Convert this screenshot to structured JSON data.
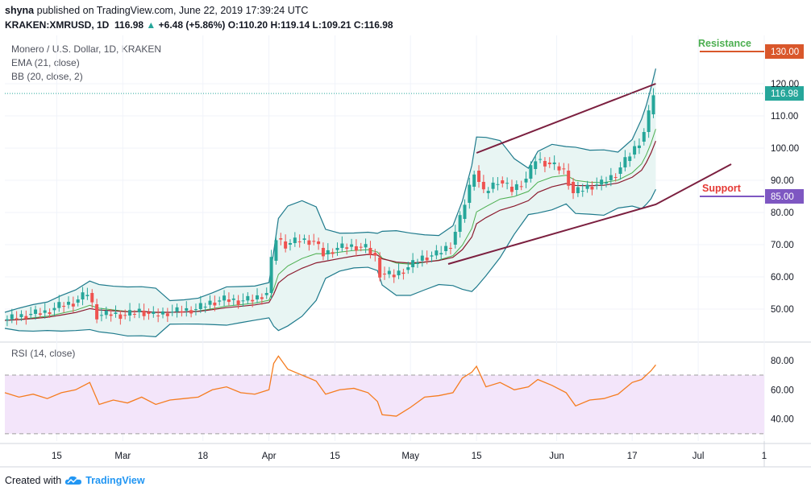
{
  "header": {
    "author": "shyna",
    "published_text": "published on TradingView.com, June 22, 2019 17:39:24 UTC",
    "symbol": "KRAKEN:XMRUSD, 1D",
    "last": "116.98",
    "change_arrow": "▲",
    "change": "+6.48 (+5.86%)",
    "o_label": "O:",
    "o_value": "110.20",
    "h_label": "H:",
    "h_value": "119.14",
    "l_label": "L:",
    "l_value": "109.21",
    "c_label": "C:",
    "c_value": "116.98"
  },
  "legends": {
    "instrument": "Monero / U.S. Dollar, 1D, KRAKEN",
    "ema": "EMA (21, close)",
    "bb": "BB (20, close, 2)",
    "rsi": "RSI (14, close)"
  },
  "footer": {
    "created_with": "Created with",
    "brand": "TradingView",
    "logo_icon": "tradingview-cloud-icon"
  },
  "colors": {
    "up": "#26a69a",
    "down": "#ef5350",
    "bb": "#1e7a8c",
    "bb_fill": "#e8f5f3",
    "ema": "#8b1a2e",
    "ema_mid": "#4caf50",
    "channel": "#7b1f3f",
    "resistance": "#d9572b",
    "support": "#7e57c2",
    "rsi": "#f57c1f",
    "rsi_band": "#f3e5fa"
  },
  "chart_data": [
    {
      "type": "candlestick",
      "title": "Monero / U.S. Dollar, 1D, KRAKEN",
      "ylim": [
        40,
        135
      ],
      "yticks": [
        50,
        60,
        70,
        80,
        90,
        100,
        110,
        120
      ],
      "ytick_labels": [
        "50.00",
        "60.00",
        "70.00",
        "80.00",
        "90.00",
        "100.00",
        "110.00",
        "120.00"
      ],
      "xtick_labels": [
        "15",
        "Mar",
        "18",
        "Apr",
        "15",
        "May",
        "15",
        "Jun",
        "17",
        "Jul",
        "1"
      ],
      "xtick_dates": [
        "2019-02-15",
        "2019-03-01",
        "2019-03-18",
        "2019-04-01",
        "2019-04-15",
        "2019-05-01",
        "2019-05-15",
        "2019-06-01",
        "2019-06-17",
        "2019-07-01",
        "2019-07-15"
      ],
      "xlim": [
        "2019-02-04",
        "2019-07-15"
      ],
      "last_price_label": "116.98",
      "levels": [
        {
          "label": "Resistance",
          "value": 130,
          "value_label": "130.00",
          "color": "#d9572b",
          "label_color": "#4caf50"
        },
        {
          "label": "Support",
          "value": 85,
          "value_label": "85.00",
          "color": "#7e57c2",
          "label_color": "#e53935"
        }
      ],
      "channel_lines": [
        {
          "points": [
            [
              "2019-05-15",
              98.5
            ],
            [
              "2019-06-22",
              120
            ]
          ]
        },
        {
          "points": [
            [
              "2019-05-09",
              64
            ],
            [
              "2019-06-22",
              82.5
            ],
            [
              "2019-07-08",
              95
            ]
          ]
        }
      ],
      "close_series": [
        [
          "2019-02-04",
          46.5
        ],
        [
          "2019-02-07",
          47.5
        ],
        [
          "2019-02-10",
          48.5
        ],
        [
          "2019-02-13",
          49
        ],
        [
          "2019-02-16",
          51
        ],
        [
          "2019-02-19",
          52
        ],
        [
          "2019-02-22",
          55
        ],
        [
          "2019-02-24",
          48
        ],
        [
          "2019-02-27",
          48.5
        ],
        [
          "2019-03-02",
          48
        ],
        [
          "2019-03-05",
          49.5
        ],
        [
          "2019-03-08",
          48
        ],
        [
          "2019-03-11",
          49
        ],
        [
          "2019-03-14",
          49.5
        ],
        [
          "2019-03-17",
          50
        ],
        [
          "2019-03-20",
          52
        ],
        [
          "2019-03-23",
          53
        ],
        [
          "2019-03-26",
          52.5
        ],
        [
          "2019-03-29",
          53
        ],
        [
          "2019-04-01",
          55
        ],
        [
          "2019-04-02",
          65
        ],
        [
          "2019-04-03",
          72
        ],
        [
          "2019-04-05",
          70
        ],
        [
          "2019-04-08",
          71.5
        ],
        [
          "2019-04-11",
          71
        ],
        [
          "2019-04-13",
          67
        ],
        [
          "2019-04-16",
          69
        ],
        [
          "2019-04-19",
          69.5
        ],
        [
          "2019-04-22",
          69
        ],
        [
          "2019-04-24",
          66
        ],
        [
          "2019-04-25",
          61
        ],
        [
          "2019-04-28",
          60.5
        ],
        [
          "2019-05-01",
          63
        ],
        [
          "2019-05-04",
          66
        ],
        [
          "2019-05-07",
          67
        ],
        [
          "2019-05-10",
          70
        ],
        [
          "2019-05-12",
          78
        ],
        [
          "2019-05-14",
          88
        ],
        [
          "2019-05-15",
          93
        ],
        [
          "2019-05-17",
          86
        ],
        [
          "2019-05-20",
          90
        ],
        [
          "2019-05-23",
          87
        ],
        [
          "2019-05-26",
          90.5
        ],
        [
          "2019-05-28",
          96.5
        ],
        [
          "2019-05-31",
          95
        ],
        [
          "2019-06-03",
          93
        ],
        [
          "2019-06-05",
          86
        ],
        [
          "2019-06-08",
          88
        ],
        [
          "2019-06-11",
          89
        ],
        [
          "2019-06-14",
          92
        ],
        [
          "2019-06-17",
          98
        ],
        [
          "2019-06-19",
          102
        ],
        [
          "2019-06-20",
          105
        ],
        [
          "2019-06-21",
          110.5
        ],
        [
          "2019-06-22",
          117
        ]
      ]
    },
    {
      "type": "line",
      "title": "RSI (14, close)",
      "ylim": [
        25,
        92
      ],
      "yticks": [
        40,
        60,
        80
      ],
      "ytick_labels": [
        "40.00",
        "60.00",
        "80.00"
      ],
      "band": [
        30,
        70
      ],
      "series": [
        {
          "points": [
            [
              "2019-02-04",
              58
            ],
            [
              "2019-02-07",
              55
            ],
            [
              "2019-02-10",
              57
            ],
            [
              "2019-02-13",
              54
            ],
            [
              "2019-02-16",
              58
            ],
            [
              "2019-02-19",
              60
            ],
            [
              "2019-02-22",
              65
            ],
            [
              "2019-02-24",
              50
            ],
            [
              "2019-02-27",
              53
            ],
            [
              "2019-03-02",
              51
            ],
            [
              "2019-03-05",
              55
            ],
            [
              "2019-03-08",
              50
            ],
            [
              "2019-03-11",
              53
            ],
            [
              "2019-03-14",
              54
            ],
            [
              "2019-03-17",
              55
            ],
            [
              "2019-03-20",
              60
            ],
            [
              "2019-03-23",
              62
            ],
            [
              "2019-03-26",
              58
            ],
            [
              "2019-03-29",
              57
            ],
            [
              "2019-04-01",
              60
            ],
            [
              "2019-04-02",
              78
            ],
            [
              "2019-04-03",
              83
            ],
            [
              "2019-04-05",
              74
            ],
            [
              "2019-04-08",
              70
            ],
            [
              "2019-04-11",
              66
            ],
            [
              "2019-04-13",
              57
            ],
            [
              "2019-04-16",
              60
            ],
            [
              "2019-04-19",
              61
            ],
            [
              "2019-04-22",
              58
            ],
            [
              "2019-04-24",
              52
            ],
            [
              "2019-04-25",
              43
            ],
            [
              "2019-04-28",
              42
            ],
            [
              "2019-05-01",
              48
            ],
            [
              "2019-05-04",
              55
            ],
            [
              "2019-05-07",
              56
            ],
            [
              "2019-05-10",
              58
            ],
            [
              "2019-05-12",
              68
            ],
            [
              "2019-05-14",
              72
            ],
            [
              "2019-05-15",
              76
            ],
            [
              "2019-05-17",
              62
            ],
            [
              "2019-05-20",
              65
            ],
            [
              "2019-05-23",
              60
            ],
            [
              "2019-05-26",
              62
            ],
            [
              "2019-05-28",
              67
            ],
            [
              "2019-05-31",
              63
            ],
            [
              "2019-06-03",
              58
            ],
            [
              "2019-06-05",
              49
            ],
            [
              "2019-06-08",
              53
            ],
            [
              "2019-06-11",
              54
            ],
            [
              "2019-06-14",
              57
            ],
            [
              "2019-06-17",
              65
            ],
            [
              "2019-06-19",
              67
            ],
            [
              "2019-06-20",
              70
            ],
            [
              "2019-06-21",
              73
            ],
            [
              "2019-06-22",
              77
            ]
          ]
        }
      ]
    }
  ]
}
